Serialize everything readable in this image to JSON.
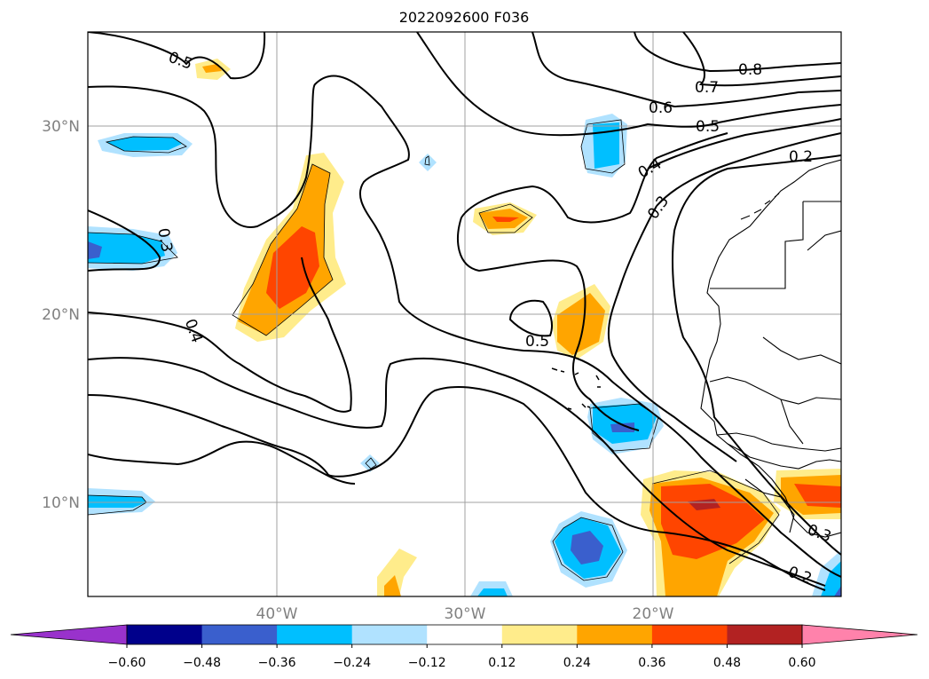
{
  "title": "2022092600 F036",
  "map": {
    "lat_labels": [
      "30°N",
      "20°N",
      "10°N"
    ],
    "lon_labels": [
      "40°W",
      "30°W",
      "20°W"
    ],
    "grid_color": "#a0a0a0"
  },
  "contour_labels": [
    "0.8",
    "0.7",
    "0.6",
    "0.5",
    "0.4",
    "0.3",
    "0.2",
    "0.5",
    "0.3",
    "0.4",
    "0.5",
    "0.3",
    "0.2"
  ],
  "colorbar": {
    "ticks": [
      "−0.60",
      "−0.48",
      "−0.36",
      "−0.24",
      "−0.12",
      "0.12",
      "0.24",
      "0.36",
      "0.48",
      "0.60"
    ],
    "colors": [
      "#9932cc",
      "#00008b",
      "#3a5fcd",
      "#00bfff",
      "#b0e2ff",
      "#ffffff",
      "#ffec8b",
      "#ffa500",
      "#ff4500",
      "#b22222",
      "#ff82ab"
    ]
  }
}
